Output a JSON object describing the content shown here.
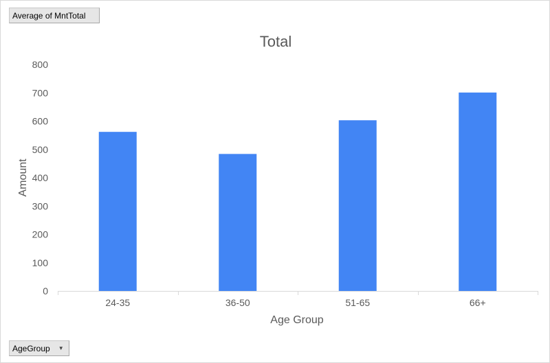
{
  "value_field_button": {
    "label": "Average of MntTotal"
  },
  "axis_field_button": {
    "label": "AgeGroup",
    "icon": "dropdown-arrow-icon"
  },
  "chart_data": {
    "type": "bar",
    "title": "Total",
    "xlabel": "Age Group",
    "ylabel": "Amount",
    "categories": [
      "24-35",
      "36-50",
      "51-65",
      "66+"
    ],
    "series": [
      {
        "values": [
          562,
          484,
          603,
          701
        ],
        "color": "#4285f4"
      }
    ],
    "ylim": [
      0,
      800
    ],
    "yticks": [
      0,
      100,
      200,
      300,
      400,
      500,
      600,
      700,
      800
    ],
    "grid": false,
    "legend": "none"
  }
}
